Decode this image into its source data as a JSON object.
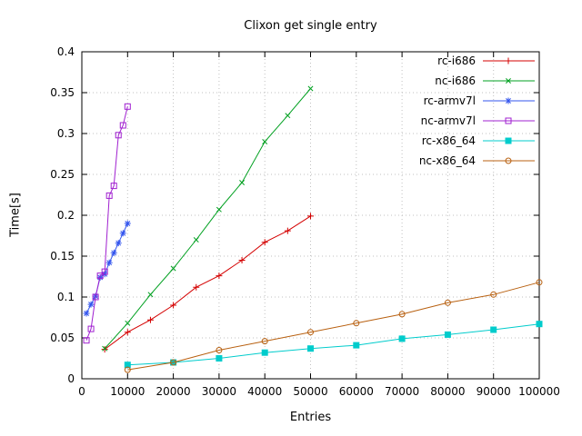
{
  "chart_data": {
    "type": "line",
    "title": "Clixon get single entry",
    "xlabel": "Entries",
    "ylabel": "Time[s]",
    "xlim": [
      0,
      100000
    ],
    "ylim": [
      0,
      0.4
    ],
    "x_ticks": [
      0,
      10000,
      20000,
      30000,
      40000,
      50000,
      60000,
      70000,
      80000,
      90000,
      100000
    ],
    "x_tick_labels": [
      "0",
      "10000",
      "20000",
      "30000",
      "40000",
      "50000",
      "60000",
      "70000",
      "80000",
      "90000",
      "100000"
    ],
    "y_ticks": [
      0,
      0.05,
      0.1,
      0.15,
      0.2,
      0.25,
      0.3,
      0.35,
      0.4
    ],
    "y_tick_labels": [
      "0",
      "0.05",
      "0.1",
      "0.15",
      "0.2",
      "0.25",
      "0.3",
      "0.35",
      "0.4"
    ],
    "grid": true,
    "grid_color": "#c0c0c0",
    "legend_position": "top-right-inside",
    "series": [
      {
        "name": "rc-i686",
        "color": "#d40000",
        "marker": "plus",
        "x": [
          5000,
          10000,
          15000,
          20000,
          25000,
          30000,
          35000,
          40000,
          45000,
          50000
        ],
        "y": [
          0.036,
          0.057,
          0.072,
          0.09,
          0.112,
          0.126,
          0.145,
          0.167,
          0.181,
          0.199
        ]
      },
      {
        "name": "nc-i686",
        "color": "#00a020",
        "marker": "cross",
        "x": [
          5000,
          10000,
          15000,
          20000,
          25000,
          30000,
          35000,
          40000,
          45000,
          50000
        ],
        "y": [
          0.037,
          0.068,
          0.103,
          0.135,
          0.17,
          0.207,
          0.24,
          0.29,
          0.322,
          0.355
        ]
      },
      {
        "name": "rc-armv7l",
        "color": "#3355ee",
        "marker": "asterisk",
        "x": [
          1000,
          2000,
          3000,
          4000,
          5000,
          6000,
          7000,
          8000,
          9000,
          10000
        ],
        "y": [
          0.08,
          0.091,
          0.101,
          0.124,
          0.128,
          0.142,
          0.154,
          0.166,
          0.178,
          0.19
        ]
      },
      {
        "name": "nc-armv7l",
        "color": "#a020d0",
        "marker": "square-open",
        "x": [
          1000,
          2000,
          3000,
          4000,
          5000,
          6000,
          7000,
          8000,
          9000,
          10000
        ],
        "y": [
          0.047,
          0.061,
          0.1,
          0.126,
          0.131,
          0.224,
          0.236,
          0.298,
          0.31,
          0.333
        ]
      },
      {
        "name": "rc-x86_64",
        "color": "#00cccc",
        "marker": "square-filled",
        "x": [
          10000,
          20000,
          30000,
          40000,
          50000,
          60000,
          70000,
          80000,
          90000,
          100000
        ],
        "y": [
          0.017,
          0.02,
          0.025,
          0.032,
          0.037,
          0.041,
          0.049,
          0.054,
          0.06,
          0.067
        ]
      },
      {
        "name": "nc-x86_64",
        "color": "#b86010",
        "marker": "circle-open",
        "x": [
          10000,
          20000,
          30000,
          40000,
          50000,
          60000,
          70000,
          80000,
          90000,
          100000
        ],
        "y": [
          0.011,
          0.02,
          0.035,
          0.046,
          0.057,
          0.068,
          0.079,
          0.093,
          0.103,
          0.118
        ]
      }
    ]
  }
}
